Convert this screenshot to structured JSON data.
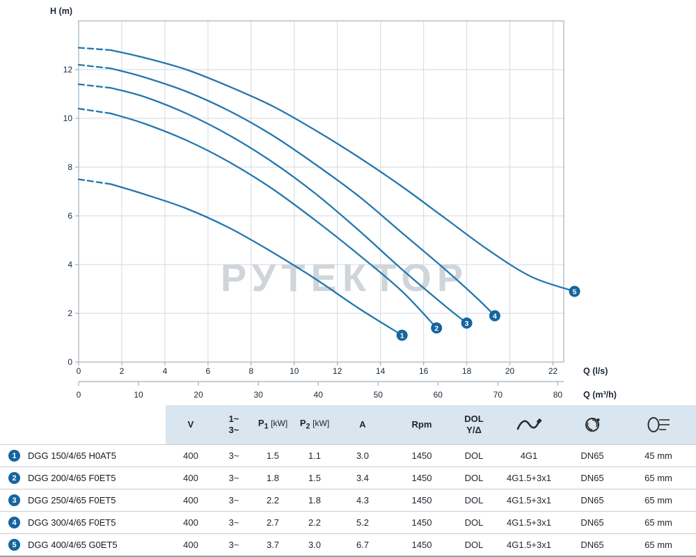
{
  "page": {
    "title": "DGG submersible pump performance curves and specification table"
  },
  "chart": {
    "y_axis_title": "H (m)",
    "x_axis_title_primary": "Q (l/s)",
    "x_axis_title_secondary": "Q (m³/h)",
    "watermark": "РУТЕКТОР",
    "colors": {
      "curve": "#2377ae",
      "marker": "#15659f",
      "grid": "#d2dae0",
      "border": "#a4b0ba",
      "text": "#1b2737",
      "watermark": "#d0d5da"
    }
  },
  "chart_data": {
    "type": "line",
    "title": "",
    "ylabel": "H (m)",
    "xlabel": "Q (l/s)",
    "xlabel_secondary": "Q (m³/h)",
    "x_unit_conversion": "1 l/s = 3.6 m³/h",
    "xlim": [
      0,
      22.5
    ],
    "ylim": [
      0,
      14
    ],
    "x_ticks": [
      0,
      2,
      4,
      6,
      8,
      10,
      12,
      14,
      16,
      18,
      20,
      22
    ],
    "x_ticks_secondary": [
      0,
      10,
      20,
      30,
      40,
      50,
      60,
      70,
      80
    ],
    "y_ticks": [
      0,
      2,
      4,
      6,
      8,
      10,
      12
    ],
    "grid": true,
    "legend": "numbered markers at curve ends correspond to table rows",
    "series": [
      {
        "name": "1",
        "label": "DGG 150/4/65 H0AT5",
        "dash_split_index": 1,
        "points": [
          [
            0,
            7.5
          ],
          [
            1.5,
            7.3
          ],
          [
            3,
            6.9
          ],
          [
            5,
            6.3
          ],
          [
            7,
            5.5
          ],
          [
            9,
            4.5
          ],
          [
            11,
            3.4
          ],
          [
            13,
            2.2
          ],
          [
            15,
            1.1
          ]
        ]
      },
      {
        "name": "2",
        "label": "DGG 200/4/65 F0ET5",
        "dash_split_index": 1,
        "points": [
          [
            0,
            10.4
          ],
          [
            1.5,
            10.2
          ],
          [
            3,
            9.8
          ],
          [
            5,
            9.1
          ],
          [
            7,
            8.2
          ],
          [
            9,
            7.1
          ],
          [
            11,
            5.8
          ],
          [
            13,
            4.4
          ],
          [
            15,
            2.9
          ],
          [
            16.6,
            1.4
          ]
        ]
      },
      {
        "name": "3",
        "label": "DGG 250/4/65 F0ET5",
        "dash_split_index": 1,
        "points": [
          [
            0,
            11.4
          ],
          [
            1.5,
            11.25
          ],
          [
            3,
            10.9
          ],
          [
            5,
            10.2
          ],
          [
            7,
            9.3
          ],
          [
            9,
            8.2
          ],
          [
            11,
            6.9
          ],
          [
            13,
            5.4
          ],
          [
            15,
            3.8
          ],
          [
            17,
            2.3
          ],
          [
            18,
            1.6
          ]
        ]
      },
      {
        "name": "4",
        "label": "DGG 300/4/65 F0ET5",
        "dash_split_index": 1,
        "points": [
          [
            0,
            12.2
          ],
          [
            1.5,
            12.05
          ],
          [
            3,
            11.7
          ],
          [
            5,
            11.1
          ],
          [
            7,
            10.3
          ],
          [
            9,
            9.3
          ],
          [
            11,
            8.1
          ],
          [
            13,
            6.8
          ],
          [
            15,
            5.3
          ],
          [
            17,
            3.8
          ],
          [
            18.5,
            2.6
          ],
          [
            19.3,
            1.9
          ]
        ]
      },
      {
        "name": "5",
        "label": "DGG 400/4/65 G0ET5",
        "dash_split_index": 1,
        "points": [
          [
            0,
            12.9
          ],
          [
            1.5,
            12.8
          ],
          [
            3,
            12.5
          ],
          [
            5,
            12.0
          ],
          [
            7,
            11.3
          ],
          [
            9,
            10.5
          ],
          [
            11,
            9.5
          ],
          [
            13,
            8.4
          ],
          [
            15,
            7.2
          ],
          [
            17,
            5.9
          ],
          [
            19,
            4.6
          ],
          [
            21,
            3.5
          ],
          [
            23,
            2.9
          ]
        ]
      }
    ]
  },
  "table": {
    "columns": [
      {
        "key": "model",
        "label": ""
      },
      {
        "key": "voltage",
        "label": "V"
      },
      {
        "key": "phase",
        "lines": [
          "1~",
          "3~"
        ]
      },
      {
        "key": "p1",
        "base": "P",
        "sub": "1",
        "unit": "[kW]"
      },
      {
        "key": "p2",
        "base": "P",
        "sub": "2",
        "unit": "[kW]"
      },
      {
        "key": "current",
        "label": "A"
      },
      {
        "key": "rpm",
        "label": "Rpm"
      },
      {
        "key": "starting",
        "lines": [
          "DOL",
          "Y/Δ"
        ]
      },
      {
        "key": "cable",
        "icon": "power-cable-icon"
      },
      {
        "key": "discharge",
        "icon": "discharge-port-icon"
      },
      {
        "key": "passage",
        "icon": "free-passage-icon"
      }
    ],
    "rows": [
      {
        "num": "1",
        "model": "DGG 150/4/65 H0AT5",
        "values": [
          "400",
          "3~",
          "1.5",
          "1.1",
          "3.0",
          "1450",
          "DOL",
          "4G1",
          "DN65",
          "45 mm"
        ]
      },
      {
        "num": "2",
        "model": "DGG 200/4/65 F0ET5",
        "values": [
          "400",
          "3~",
          "1.8",
          "1.5",
          "3.4",
          "1450",
          "DOL",
          "4G1.5+3x1",
          "DN65",
          "65 mm"
        ]
      },
      {
        "num": "3",
        "model": "DGG 250/4/65 F0ET5",
        "values": [
          "400",
          "3~",
          "2.2",
          "1.8",
          "4.3",
          "1450",
          "DOL",
          "4G1.5+3x1",
          "DN65",
          "65 mm"
        ]
      },
      {
        "num": "4",
        "model": "DGG 300/4/65 F0ET5",
        "values": [
          "400",
          "3~",
          "2.7",
          "2.2",
          "5.2",
          "1450",
          "DOL",
          "4G1.5+3x1",
          "DN65",
          "65 mm"
        ]
      },
      {
        "num": "5",
        "model": "DGG 400/4/65 G0ET5",
        "values": [
          "400",
          "3~",
          "3.7",
          "3.0",
          "6.7",
          "1450",
          "DOL",
          "4G1.5+3x1",
          "DN65",
          "65 mm"
        ]
      }
    ]
  }
}
